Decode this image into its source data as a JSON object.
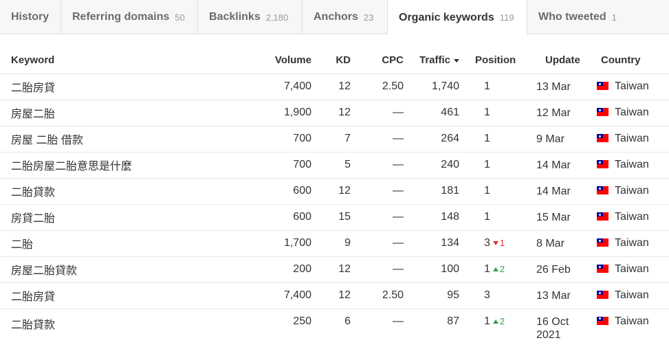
{
  "tabs": [
    {
      "label": "History",
      "count": ""
    },
    {
      "label": "Referring domains",
      "count": "50"
    },
    {
      "label": "Backlinks",
      "count": "2,180"
    },
    {
      "label": "Anchors",
      "count": "23"
    },
    {
      "label": "Organic keywords",
      "count": "119",
      "active": true
    },
    {
      "label": "Who tweeted",
      "count": "1"
    }
  ],
  "table": {
    "headers": {
      "keyword": "Keyword",
      "volume": "Volume",
      "kd": "KD",
      "cpc": "CPC",
      "traffic": "Traffic",
      "position": "Position",
      "update": "Update",
      "country": "Country"
    },
    "sort_icon": "sort-desc-icon",
    "rows": [
      {
        "keyword": "二胎房貸",
        "volume": "7,400",
        "kd": "12",
        "cpc": "2.50",
        "traffic": "1,740",
        "position": "1",
        "change": "",
        "direction": "",
        "update": "13 Mar",
        "country": "Taiwan"
      },
      {
        "keyword": "房屋二胎",
        "volume": "1,900",
        "kd": "12",
        "cpc": "—",
        "traffic": "461",
        "position": "1",
        "change": "",
        "direction": "",
        "update": "12 Mar",
        "country": "Taiwan"
      },
      {
        "keyword": "房屋 二胎 借款",
        "volume": "700",
        "kd": "7",
        "cpc": "—",
        "traffic": "264",
        "position": "1",
        "change": "",
        "direction": "",
        "update": "9 Mar",
        "country": "Taiwan"
      },
      {
        "keyword": "二胎房屋二胎意思是什麼",
        "volume": "700",
        "kd": "5",
        "cpc": "—",
        "traffic": "240",
        "position": "1",
        "change": "",
        "direction": "",
        "update": "14 Mar",
        "country": "Taiwan"
      },
      {
        "keyword": "二胎貸款",
        "volume": "600",
        "kd": "12",
        "cpc": "—",
        "traffic": "181",
        "position": "1",
        "change": "",
        "direction": "",
        "update": "14 Mar",
        "country": "Taiwan"
      },
      {
        "keyword": "房貸二胎",
        "volume": "600",
        "kd": "15",
        "cpc": "—",
        "traffic": "148",
        "position": "1",
        "change": "",
        "direction": "",
        "update": "15 Mar",
        "country": "Taiwan"
      },
      {
        "keyword": "二胎",
        "volume": "1,700",
        "kd": "9",
        "cpc": "—",
        "traffic": "134",
        "position": "3",
        "change": "1",
        "direction": "down",
        "update": "8 Mar",
        "country": "Taiwan"
      },
      {
        "keyword": "房屋二胎貸款",
        "volume": "200",
        "kd": "12",
        "cpc": "—",
        "traffic": "100",
        "position": "1",
        "change": "2",
        "direction": "up",
        "update": "26 Feb",
        "country": "Taiwan"
      },
      {
        "keyword": "二胎房貸",
        "volume": "7,400",
        "kd": "12",
        "cpc": "2.50",
        "traffic": "95",
        "position": "3",
        "change": "",
        "direction": "",
        "update": "13 Mar",
        "country": "Taiwan"
      },
      {
        "keyword": "二胎貸款",
        "volume": "250",
        "kd": "6",
        "cpc": "—",
        "traffic": "87",
        "position": "1",
        "change": "2",
        "direction": "up",
        "update": "16 Oct\n2021",
        "country": "Taiwan"
      }
    ]
  },
  "colors": {
    "tab_bar_bg": "#f7f7f7",
    "change_down": "#e03030",
    "change_up": "#2f9e44"
  }
}
